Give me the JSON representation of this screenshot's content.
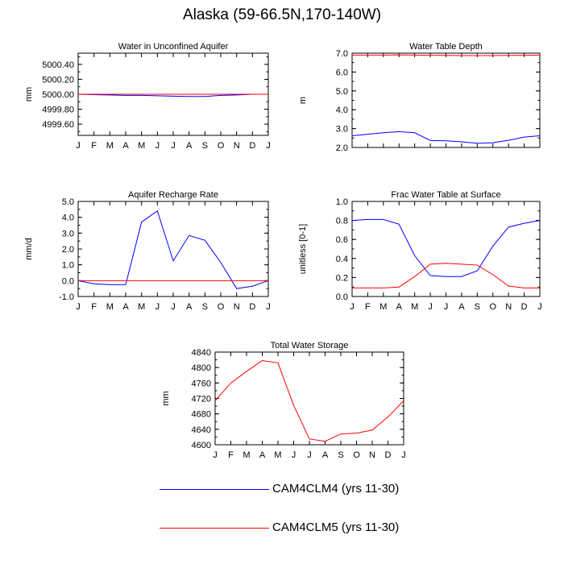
{
  "title": "Alaska (59-66.5N,170-140W)",
  "months": [
    "J",
    "F",
    "M",
    "A",
    "M",
    "J",
    "J",
    "A",
    "S",
    "O",
    "N",
    "D",
    "J"
  ],
  "colors": {
    "cam4": "#0000ff",
    "cam5": "#ff0000",
    "axis": "#000000"
  },
  "legend": [
    {
      "label": "CAM4CLM4 (yrs 11-30)",
      "color": "#0000ff"
    },
    {
      "label": "CAM4CLM5 (yrs 11-30)",
      "color": "#ff0000"
    }
  ],
  "chart_data": [
    {
      "id": "aquifer",
      "type": "line",
      "title": "Water in Unconfined Aquifer",
      "ylabel": "mm",
      "ylim": [
        4999.45,
        5000.55
      ],
      "yticks": [
        4999.6,
        4999.8,
        5000.0,
        5000.2,
        5000.4
      ],
      "ytick_labels": [
        "4999.60",
        "4999.80",
        "5000.00",
        "5000.20",
        "5000.40"
      ],
      "series": [
        {
          "name": "CAM4CLM4 (yrs 11-30)",
          "color": "#0000ff",
          "values": [
            5000.0,
            4999.995,
            4999.99,
            4999.985,
            4999.985,
            4999.98,
            4999.975,
            4999.97,
            4999.97,
            4999.985,
            4999.99,
            5000.0,
            5000.0
          ]
        },
        {
          "name": "CAM4CLM5 (yrs 11-30)",
          "color": "#ff0000",
          "values": [
            5000.0,
            5000.0,
            5000.0,
            5000.0,
            5000.0,
            5000.0,
            5000.0,
            5000.0,
            5000.0,
            5000.0,
            5000.0,
            5000.0,
            5000.0
          ]
        }
      ]
    },
    {
      "id": "wtd",
      "type": "line",
      "title": "Water Table Depth",
      "ylabel": "m",
      "ylim": [
        2.0,
        7.0
      ],
      "yticks": [
        2.0,
        3.0,
        4.0,
        5.0,
        6.0,
        7.0
      ],
      "ytick_labels": [
        "2.0",
        "3.0",
        "4.0",
        "5.0",
        "6.0",
        "7.0"
      ],
      "series": [
        {
          "name": "CAM4CLM4 (yrs 11-30)",
          "color": "#0000ff",
          "values": [
            2.62,
            2.7,
            2.78,
            2.84,
            2.78,
            2.37,
            2.35,
            2.3,
            2.22,
            2.25,
            2.38,
            2.55,
            2.62
          ]
        },
        {
          "name": "CAM4CLM5 (yrs 11-30)",
          "color": "#ff0000",
          "values": [
            6.9,
            6.9,
            6.9,
            6.91,
            6.9,
            6.89,
            6.88,
            6.87,
            6.87,
            6.87,
            6.88,
            6.89,
            6.9
          ]
        }
      ]
    },
    {
      "id": "recharge",
      "type": "line",
      "title": "Aquifer Recharge Rate",
      "ylabel": "mm/d",
      "ylim": [
        -1.0,
        5.0
      ],
      "yticks": [
        -1.0,
        0.0,
        1.0,
        2.0,
        3.0,
        4.0,
        5.0
      ],
      "ytick_labels": [
        "-1.0",
        "0.0",
        "1.0",
        "2.0",
        "3.0",
        "4.0",
        "5.0"
      ],
      "series": [
        {
          "name": "CAM4CLM4 (yrs 11-30)",
          "color": "#0000ff",
          "values": [
            0.0,
            -0.2,
            -0.25,
            -0.25,
            3.7,
            4.4,
            1.25,
            2.85,
            2.55,
            1.15,
            -0.5,
            -0.35,
            0.0
          ]
        },
        {
          "name": "CAM4CLM5 (yrs 11-30)",
          "color": "#ff0000",
          "values": [
            0.0,
            0.0,
            0.0,
            0.0,
            0.0,
            0.0,
            0.0,
            0.0,
            0.0,
            0.0,
            0.0,
            0.0,
            0.0
          ]
        }
      ]
    },
    {
      "id": "frac",
      "type": "line",
      "title": "Frac Water Table at Surface",
      "ylabel": "unitless [0-1]",
      "ylim": [
        0.0,
        1.0
      ],
      "yticks": [
        0.0,
        0.2,
        0.4,
        0.6,
        0.8,
        1.0
      ],
      "ytick_labels": [
        "0.0",
        "0.2",
        "0.4",
        "0.6",
        "0.8",
        "1.0"
      ],
      "series": [
        {
          "name": "CAM4CLM4 (yrs 11-30)",
          "color": "#0000ff",
          "values": [
            0.8,
            0.81,
            0.81,
            0.76,
            0.43,
            0.22,
            0.21,
            0.21,
            0.27,
            0.53,
            0.73,
            0.77,
            0.8
          ]
        },
        {
          "name": "CAM4CLM5 (yrs 11-30)",
          "color": "#ff0000",
          "values": [
            0.09,
            0.09,
            0.09,
            0.1,
            0.21,
            0.34,
            0.35,
            0.34,
            0.33,
            0.23,
            0.11,
            0.09,
            0.09
          ]
        }
      ]
    },
    {
      "id": "storage",
      "type": "line",
      "title": "Total Water Storage",
      "ylabel": "mm",
      "ylim": [
        4600,
        4840
      ],
      "yticks": [
        4600,
        4640,
        4680,
        4720,
        4760,
        4800,
        4840
      ],
      "ytick_labels": [
        "4600",
        "4640",
        "4680",
        "4720",
        "4760",
        "4800",
        "4840"
      ],
      "series": [
        {
          "name": "CAM4CLM5 (yrs 11-30)",
          "color": "#ff0000",
          "values": [
            4714,
            4760,
            4790,
            4818,
            4812,
            4702,
            4615,
            4609,
            4628,
            4630,
            4638,
            4672,
            4714
          ]
        }
      ]
    }
  ]
}
